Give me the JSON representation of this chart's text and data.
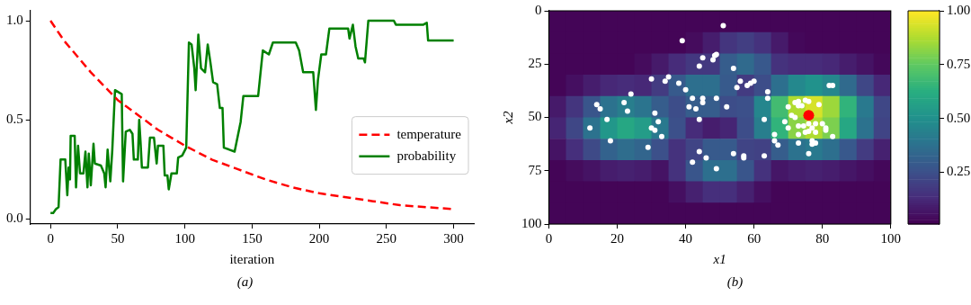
{
  "chart_data": [
    {
      "type": "line",
      "xlabel": "iteration",
      "xlim": [
        -15,
        315
      ],
      "xticks": [
        0,
        50,
        100,
        150,
        200,
        250,
        300
      ],
      "ylim": [
        -0.025,
        1.05
      ],
      "yticks": [
        {
          "value": 0,
          "label": "0.0"
        },
        {
          "value": 0.5,
          "label": "0.5"
        },
        {
          "value": 1,
          "label": "1.0"
        }
      ],
      "legend": "right",
      "annotations": [
        "(a)"
      ],
      "series": [
        {
          "name": "temperature",
          "color": "#ff0000",
          "line_style": "dashed",
          "x": [
            0,
            10,
            20,
            30,
            40,
            50,
            60,
            70,
            80,
            90,
            100,
            120,
            140,
            160,
            180,
            200,
            220,
            240,
            260,
            280,
            300
          ],
          "values": [
            1.0,
            0.9,
            0.82,
            0.74,
            0.67,
            0.6,
            0.55,
            0.5,
            0.45,
            0.41,
            0.37,
            0.3,
            0.25,
            0.2,
            0.16,
            0.13,
            0.11,
            0.09,
            0.07,
            0.06,
            0.05
          ]
        },
        {
          "name": "probability",
          "color": "#008000",
          "line_style": "solid",
          "x": [
            0,
            2,
            4,
            6,
            7.5,
            11,
            12.5,
            13.5,
            14.5,
            15,
            18,
            19,
            20.5,
            22,
            24.5,
            26,
            27.5,
            28.5,
            30,
            32,
            33,
            37.5,
            40,
            41,
            42.5,
            44.5,
            46,
            48,
            53,
            54,
            56,
            59,
            61,
            62,
            65,
            66,
            67,
            68,
            72.5,
            74,
            77,
            79,
            80,
            84,
            85,
            87,
            88,
            90,
            94,
            95,
            98,
            101,
            103,
            105,
            107,
            108,
            110,
            112,
            115,
            117,
            119,
            121,
            124,
            126,
            128,
            129,
            137,
            141.5,
            143.5,
            154.5,
            158,
            162.5,
            165.5,
            182.5,
            185,
            188,
            195.5,
            197.5,
            199,
            201.5,
            205,
            207.5,
            221.5,
            222.5,
            225,
            227,
            229,
            233,
            234,
            236.5,
            255.5,
            257,
            277.5,
            280,
            281,
            300
          ],
          "values": [
            0.03,
            0.03,
            0.05,
            0.06,
            0.3,
            0.3,
            0.12,
            0.26,
            0.2,
            0.42,
            0.42,
            0.16,
            0.37,
            0.23,
            0.23,
            0.34,
            0.16,
            0.33,
            0.17,
            0.38,
            0.28,
            0.27,
            0.23,
            0.16,
            0.35,
            0.19,
            0.35,
            0.65,
            0.63,
            0.19,
            0.44,
            0.45,
            0.43,
            0.3,
            0.3,
            0.5,
            0.39,
            0.26,
            0.26,
            0.41,
            0.41,
            0.28,
            0.37,
            0.37,
            0.22,
            0.22,
            0.15,
            0.23,
            0.23,
            0.31,
            0.32,
            0.36,
            0.89,
            0.88,
            0.76,
            0.65,
            0.93,
            0.76,
            0.74,
            0.88,
            0.79,
            0.69,
            0.68,
            0.56,
            0.56,
            0.36,
            0.34,
            0.49,
            0.62,
            0.62,
            0.85,
            0.83,
            0.89,
            0.89,
            0.85,
            0.74,
            0.74,
            0.55,
            0.7,
            0.83,
            0.83,
            0.96,
            0.96,
            0.91,
            0.98,
            0.87,
            0.81,
            0.81,
            0.79,
            1.0,
            1.0,
            0.98,
            0.98,
            0.99,
            0.9,
            0.9
          ]
        }
      ]
    },
    {
      "type": "heatmap",
      "xlabel": "x1",
      "ylabel": "x2",
      "xlim": [
        0,
        100
      ],
      "xticks": [
        0,
        20,
        40,
        60,
        80,
        100
      ],
      "ylim": [
        100,
        0
      ],
      "yticks": [
        0,
        25,
        50,
        75,
        100
      ],
      "clim": [
        0.01,
        1.0
      ],
      "cticks": [
        {
          "value": 0.25,
          "label": "0.25"
        },
        {
          "value": 0.5,
          "label": "0.50"
        },
        {
          "value": 0.75,
          "label": "0.75"
        },
        {
          "value": 1,
          "label": "1.00"
        }
      ],
      "marker": "circle",
      "annotations": [
        "(b)"
      ],
      "cells": [
        [
          0.02,
          0.02,
          0.02,
          0.02,
          0.02,
          0.02,
          0.02,
          0.02,
          0.02,
          0.02,
          0.02,
          0.02,
          0.02,
          0.02,
          0.02,
          0.02,
          0.02,
          0.02,
          0.02,
          0.02
        ],
        [
          0.02,
          0.02,
          0.02,
          0.02,
          0.02,
          0.02,
          0.02,
          0.02,
          0.04,
          0.09,
          0.16,
          0.19,
          0.15,
          0.08,
          0.03,
          0.02,
          0.02,
          0.02,
          0.02,
          0.02
        ],
        [
          0.02,
          0.02,
          0.02,
          0.02,
          0.02,
          0.04,
          0.08,
          0.13,
          0.17,
          0.17,
          0.3,
          0.35,
          0.28,
          0.15,
          0.13,
          0.13,
          0.12,
          0.09,
          0.06,
          0.03
        ],
        [
          0.02,
          0.05,
          0.09,
          0.12,
          0.13,
          0.12,
          0.18,
          0.29,
          0.37,
          0.37,
          0.29,
          0.18,
          0.24,
          0.37,
          0.47,
          0.51,
          0.46,
          0.35,
          0.22,
          0.12
        ],
        [
          0.08,
          0.16,
          0.27,
          0.38,
          0.43,
          0.39,
          0.3,
          0.24,
          0.3,
          0.3,
          0.24,
          0.25,
          0.46,
          0.69,
          0.88,
          0.94,
          0.85,
          0.65,
          0.41,
          0.22
        ],
        [
          0.11,
          0.22,
          0.38,
          0.53,
          0.6,
          0.55,
          0.41,
          0.25,
          0.13,
          0.09,
          0.11,
          0.24,
          0.43,
          0.65,
          0.82,
          0.88,
          0.8,
          0.6,
          0.38,
          0.21
        ],
        [
          0.06,
          0.14,
          0.23,
          0.32,
          0.36,
          0.33,
          0.25,
          0.15,
          0.21,
          0.29,
          0.29,
          0.21,
          0.2,
          0.3,
          0.38,
          0.41,
          0.37,
          0.28,
          0.18,
          0.1
        ],
        [
          0.02,
          0.04,
          0.06,
          0.09,
          0.1,
          0.09,
          0.06,
          0.15,
          0.27,
          0.37,
          0.37,
          0.27,
          0.15,
          0.07,
          0.09,
          0.1,
          0.09,
          0.07,
          0.05,
          0.03
        ],
        [
          0.02,
          0.02,
          0.02,
          0.02,
          0.02,
          0.02,
          0.02,
          0.05,
          0.1,
          0.14,
          0.14,
          0.1,
          0.05,
          0.02,
          0.02,
          0.02,
          0.02,
          0.02,
          0.02,
          0.02
        ],
        [
          0.02,
          0.02,
          0.02,
          0.02,
          0.02,
          0.02,
          0.02,
          0.02,
          0.02,
          0.02,
          0.02,
          0.02,
          0.02,
          0.02,
          0.02,
          0.02,
          0.02,
          0.02,
          0.02,
          0.02
        ]
      ],
      "series": [
        {
          "type": "scatter",
          "color": "#ffffff",
          "x": [
            51,
            39,
            45,
            48.5,
            49,
            48,
            44,
            30,
            34,
            35,
            38,
            40,
            42,
            45,
            45,
            49,
            52,
            41,
            43,
            44,
            14,
            15,
            22,
            23,
            24,
            17,
            12,
            18,
            31,
            32,
            30,
            31,
            33,
            29,
            44,
            46,
            42,
            49,
            54,
            56,
            55,
            58,
            59,
            60,
            64,
            64,
            63,
            66,
            66,
            67,
            54,
            57,
            57,
            63,
            82,
            83,
            70,
            72,
            73,
            75,
            76,
            79,
            69,
            70,
            71,
            72,
            73,
            74.5,
            76,
            77,
            78,
            80,
            81,
            81,
            83,
            73,
            75,
            76,
            78,
            73,
            77,
            78,
            77,
            76,
            73,
            74
          ],
          "values": [
            7,
            14,
            22,
            21,
            20.5,
            23,
            26,
            32,
            33,
            31,
            34,
            37,
            41,
            41,
            43,
            41,
            45,
            45,
            46,
            51,
            44,
            46,
            43,
            47,
            39,
            51,
            55,
            61,
            48,
            52,
            55,
            56,
            59,
            64,
            66,
            69,
            71,
            74,
            27,
            33,
            36,
            35,
            34,
            33,
            38,
            41,
            51,
            58,
            61,
            63,
            67,
            68,
            69,
            68,
            35,
            35,
            45,
            43,
            42.5,
            42,
            42.5,
            44,
            52,
            55,
            49,
            50,
            54,
            54,
            53,
            55,
            53,
            53,
            55,
            56,
            59,
            58,
            57,
            56.5,
            57,
            62,
            61,
            62,
            62.5,
            67,
            44.5,
            44.5
          ]
        },
        {
          "type": "scatter",
          "color": "#ff0000",
          "x": [
            76
          ],
          "values": [
            49
          ]
        }
      ]
    }
  ]
}
